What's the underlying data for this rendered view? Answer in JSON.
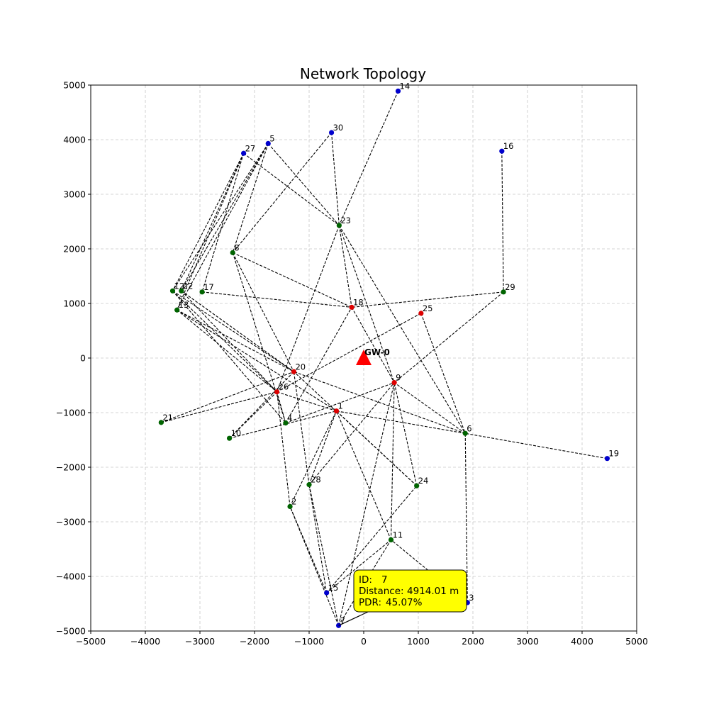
{
  "chart_data": {
    "type": "scatter",
    "title": "Network Topology",
    "xlim": [
      -5000,
      5000
    ],
    "ylim": [
      -5000,
      5000
    ],
    "xticks": [
      -5000,
      -4000,
      -3000,
      -2000,
      -1000,
      0,
      1000,
      2000,
      3000,
      4000,
      5000
    ],
    "yticks": [
      -5000,
      -4000,
      -3000,
      -2000,
      -1000,
      0,
      1000,
      2000,
      3000,
      4000,
      5000
    ],
    "grid": true,
    "colors": {
      "red": "#dd0000",
      "green": "#006400",
      "blue": "#0000cd",
      "gateway": "#ff0000",
      "tooltip_bg": "#ffff00"
    },
    "gateway": {
      "label": "GW-0",
      "x": 0,
      "y": 0
    },
    "nodes": [
      {
        "id": 1,
        "x": -500,
        "y": -970,
        "color": "red"
      },
      {
        "id": 2,
        "x": -1350,
        "y": -2720,
        "color": "green"
      },
      {
        "id": 3,
        "x": 1900,
        "y": -4480,
        "color": "blue"
      },
      {
        "id": 4,
        "x": -1430,
        "y": -1190,
        "color": "green"
      },
      {
        "id": 5,
        "x": -1750,
        "y": 3930,
        "color": "blue"
      },
      {
        "id": 6,
        "x": 1860,
        "y": -1380,
        "color": "green"
      },
      {
        "id": 7,
        "x": -460,
        "y": -4900,
        "color": "blue"
      },
      {
        "id": 8,
        "x": -2400,
        "y": 1930,
        "color": "green"
      },
      {
        "id": 9,
        "x": 560,
        "y": -450,
        "color": "red"
      },
      {
        "id": 10,
        "x": -2460,
        "y": -1470,
        "color": "green"
      },
      {
        "id": 11,
        "x": 500,
        "y": -3330,
        "color": "green"
      },
      {
        "id": 12,
        "x": -3500,
        "y": 1230,
        "color": "green"
      },
      {
        "id": 13,
        "x": -3420,
        "y": 880,
        "color": "green"
      },
      {
        "id": 14,
        "x": 630,
        "y": 4890,
        "color": "blue"
      },
      {
        "id": 15,
        "x": -680,
        "y": -4300,
        "color": "blue"
      },
      {
        "id": 16,
        "x": 2530,
        "y": 3790,
        "color": "blue"
      },
      {
        "id": 17,
        "x": -2960,
        "y": 1210,
        "color": "green"
      },
      {
        "id": 18,
        "x": -220,
        "y": 930,
        "color": "red"
      },
      {
        "id": 19,
        "x": 4460,
        "y": -1840,
        "color": "blue"
      },
      {
        "id": 20,
        "x": -1280,
        "y": -250,
        "color": "red"
      },
      {
        "id": 21,
        "x": -3710,
        "y": -1180,
        "color": "green"
      },
      {
        "id": 22,
        "x": -3340,
        "y": 1230,
        "color": "green"
      },
      {
        "id": 23,
        "x": -450,
        "y": 2430,
        "color": "green"
      },
      {
        "id": 24,
        "x": 970,
        "y": -2340,
        "color": "green"
      },
      {
        "id": 25,
        "x": 1050,
        "y": 820,
        "color": "red"
      },
      {
        "id": 26,
        "x": -1590,
        "y": -620,
        "color": "red"
      },
      {
        "id": 27,
        "x": -2200,
        "y": 3750,
        "color": "blue"
      },
      {
        "id": 28,
        "x": -1000,
        "y": -2320,
        "color": "green"
      },
      {
        "id": 29,
        "x": 2560,
        "y": 1210,
        "color": "green"
      },
      {
        "id": 30,
        "x": -590,
        "y": 4130,
        "color": "blue"
      }
    ],
    "edges": [
      [
        14,
        23
      ],
      [
        16,
        29
      ],
      [
        19,
        6
      ],
      [
        30,
        23
      ],
      [
        30,
        8
      ],
      [
        27,
        23
      ],
      [
        27,
        12
      ],
      [
        27,
        22
      ],
      [
        27,
        13
      ],
      [
        27,
        17
      ],
      [
        5,
        23
      ],
      [
        5,
        8
      ],
      [
        5,
        12
      ],
      [
        5,
        22
      ],
      [
        5,
        13
      ],
      [
        3,
        6
      ],
      [
        3,
        11
      ],
      [
        15,
        28
      ],
      [
        15,
        24
      ],
      [
        15,
        2
      ],
      [
        15,
        11
      ],
      [
        7,
        9
      ],
      [
        7,
        2
      ],
      [
        7,
        28
      ],
      [
        7,
        11
      ],
      [
        23,
        18
      ],
      [
        23,
        26
      ],
      [
        23,
        9
      ],
      [
        23,
        6
      ],
      [
        8,
        18
      ],
      [
        8,
        20
      ],
      [
        8,
        4
      ],
      [
        17,
        18
      ],
      [
        12,
        20
      ],
      [
        12,
        26
      ],
      [
        12,
        4
      ],
      [
        22,
        20
      ],
      [
        22,
        26
      ],
      [
        13,
        26
      ],
      [
        13,
        20
      ],
      [
        13,
        1
      ],
      [
        29,
        18
      ],
      [
        29,
        9
      ],
      [
        25,
        26
      ],
      [
        25,
        6
      ],
      [
        6,
        1
      ],
      [
        6,
        9
      ],
      [
        6,
        20
      ],
      [
        24,
        20
      ],
      [
        24,
        1
      ],
      [
        24,
        9
      ],
      [
        10,
        20
      ],
      [
        10,
        26
      ],
      [
        10,
        1
      ],
      [
        21,
        20
      ],
      [
        21,
        26
      ],
      [
        2,
        26
      ],
      [
        2,
        1
      ],
      [
        28,
        20
      ],
      [
        28,
        9
      ],
      [
        28,
        1
      ],
      [
        4,
        9
      ],
      [
        4,
        18
      ],
      [
        4,
        26
      ],
      [
        11,
        1
      ],
      [
        11,
        9
      ],
      [
        1,
        26
      ],
      [
        18,
        9
      ]
    ],
    "tooltip": {
      "target_id": 7,
      "lines": [
        {
          "label": "ID:",
          "value": "7"
        },
        {
          "label": "Distance:",
          "value": "4914.01 m"
        },
        {
          "label": "PDR:",
          "value": "45.07%"
        }
      ]
    }
  }
}
